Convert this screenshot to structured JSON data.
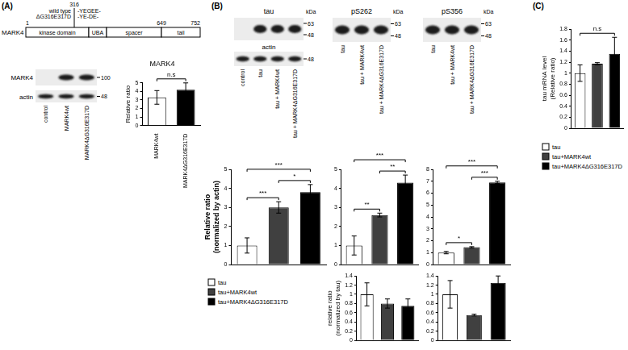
{
  "panels": [
    "(A)",
    "(B)",
    "(C)"
  ],
  "diagram": {
    "protein": "MARK4",
    "domains": [
      "kinase domain",
      "UBA",
      "spacer",
      "tail"
    ],
    "positions": [
      1,
      649,
      752
    ],
    "site": 316,
    "variants": [
      {
        "name": "wild type",
        "sequence": "-YEGEE-"
      },
      {
        "name": "ΔG316E317D",
        "sequence": "-YE-DE-"
      }
    ]
  },
  "blots": [
    {
      "rows": [
        {
          "label": "MARK4",
          "markers": [
            100
          ],
          "bands": [
            false,
            true,
            true
          ]
        },
        {
          "label": "actin",
          "markers": [
            48
          ],
          "bands": [
            true,
            true,
            true
          ]
        }
      ],
      "lanes": [
        "control",
        "MARK4wt",
        "MARK4ΔG316E317D"
      ]
    },
    {
      "title": "tau",
      "units": "kDa",
      "rows": [
        {
          "markers": [
            63,
            48
          ],
          "bands": [
            false,
            true,
            true,
            true
          ]
        },
        {
          "label": "actin",
          "markers": [
            48
          ],
          "bands": [
            true,
            true,
            true,
            true
          ]
        }
      ],
      "lanes": [
        "control",
        "tau",
        "tau + MARK4wt",
        "tau + MARK4ΔG316E317D"
      ]
    },
    {
      "title": "pS262",
      "units": "kDa",
      "rows": [
        {
          "markers": [
            63,
            48
          ],
          "bands": [
            true,
            true,
            true
          ]
        }
      ],
      "lanes": [
        "tau",
        "tau + MARK4wt",
        "tau + MARK4ΔG316E317D"
      ]
    },
    {
      "title": "pS356",
      "units": "kDa",
      "rows": [
        {
          "markers": [
            63,
            48
          ],
          "bands": [
            true,
            true,
            true
          ]
        }
      ],
      "lanes": [
        "tau",
        "tau + MARK4wt",
        "tau + MARK4ΔG316E317D"
      ]
    }
  ],
  "legends": [
    {
      "items": [
        {
          "name": "tau",
          "color": "#ffffff"
        },
        {
          "name": "tau+MARK4wt",
          "color": "#404040"
        },
        {
          "name": "tau+MARK4ΔG316E317D",
          "color": "#000000"
        }
      ]
    },
    {
      "items": [
        {
          "name": "tau",
          "color": "#ffffff"
        },
        {
          "name": "tau+MARK4wt",
          "color": "#404040"
        },
        {
          "name": "tau+MARK4ΔG316E317D",
          "color": "#000000"
        }
      ]
    }
  ],
  "chart_data": [
    {
      "type": "bar",
      "title": "MARK4",
      "ylabel": "Relative ratio",
      "categories": [
        "MARK4wt",
        "MARK4ΔG316E317D"
      ],
      "values": [
        3.3,
        4.2
      ],
      "errors": [
        0.8,
        0.8
      ],
      "colors": [
        "#ffffff",
        "#000000"
      ],
      "ylim": [
        0,
        5
      ],
      "yticks": [
        0,
        1,
        2,
        3,
        4,
        5
      ],
      "grid": false,
      "annotations": [
        {
          "from": 0,
          "to": 1,
          "label": "n.s"
        }
      ]
    },
    {
      "type": "bar",
      "ylabel": "Relative ratio (normalized by actin)",
      "categories": [
        null,
        null,
        null
      ],
      "values": [
        1.0,
        3.0,
        3.8
      ],
      "errors": [
        0.4,
        0.3,
        0.4
      ],
      "colors": [
        "#ffffff",
        "#404040",
        "#000000"
      ],
      "ylim": [
        0,
        5
      ],
      "yticks": [
        0,
        1,
        2,
        3,
        4,
        5
      ],
      "grid": false,
      "tick_labels": "y",
      "annotations": [
        {
          "from": 0,
          "to": 1,
          "label": "***"
        },
        {
          "from": 1,
          "to": 2,
          "label": "*"
        },
        {
          "from": 0,
          "to": 2,
          "label": "***"
        }
      ]
    },
    {
      "type": "bar",
      "categories": [
        null,
        null,
        null
      ],
      "values": [
        1.0,
        2.6,
        4.3
      ],
      "errors": [
        0.5,
        0.1,
        0.4
      ],
      "colors": [
        "#ffffff",
        "#404040",
        "#000000"
      ],
      "ylim": [
        0,
        5
      ],
      "yticks": [
        0,
        1,
        2,
        3,
        4,
        5
      ],
      "grid": false,
      "tick_labels": "y",
      "annotations": [
        {
          "from": 0,
          "to": 1,
          "label": "**"
        },
        {
          "from": 1,
          "to": 2,
          "label": "**"
        },
        {
          "from": 0,
          "to": 2,
          "label": "***"
        }
      ]
    },
    {
      "type": "bar",
      "categories": [
        null,
        null,
        null
      ],
      "values": [
        1.0,
        1.45,
        6.9
      ],
      "errors": [
        0.1,
        0.05,
        0.1
      ],
      "colors": [
        "#ffffff",
        "#404040",
        "#000000"
      ],
      "ylim": [
        0,
        8
      ],
      "yticks": [
        0,
        1,
        2,
        3,
        4,
        5,
        6,
        7,
        8
      ],
      "grid": false,
      "tick_labels": "y",
      "annotations": [
        {
          "from": 0,
          "to": 1,
          "label": "*"
        },
        {
          "from": 1,
          "to": 2,
          "label": "***"
        },
        {
          "from": 0,
          "to": 2,
          "label": "***"
        }
      ]
    },
    {
      "type": "bar",
      "ylabel": "relative ratio (normalized by tau)",
      "categories": [
        null,
        null,
        null
      ],
      "values": [
        1.0,
        0.8,
        0.75
      ],
      "errors": [
        0.25,
        0.1,
        0.15
      ],
      "colors": [
        "#ffffff",
        "#404040",
        "#000000"
      ],
      "ylim": [
        0,
        1.4
      ],
      "yticks": [
        0,
        0.2,
        0.4,
        0.6,
        0.8,
        1,
        1.2,
        1.4
      ],
      "grid": false,
      "tick_labels": "y"
    },
    {
      "type": "bar",
      "categories": [
        null,
        null,
        null
      ],
      "values": [
        1.0,
        0.55,
        1.25
      ],
      "errors": [
        0.3,
        0.02,
        0.15
      ],
      "colors": [
        "#ffffff",
        "#404040",
        "#000000"
      ],
      "ylim": [
        0,
        1.4
      ],
      "yticks": [
        0,
        0.2,
        0.4,
        0.6,
        0.8,
        1,
        1.2,
        1.4
      ],
      "grid": false,
      "tick_labels": "y"
    },
    {
      "type": "bar",
      "ylabel": "tau mRNA level (Relative ratio)",
      "categories": [
        null,
        null,
        null
      ],
      "values": [
        1.0,
        1.17,
        1.35
      ],
      "errors": [
        0.15,
        0.02,
        0.3
      ],
      "colors": [
        "#ffffff",
        "#404040",
        "#000000"
      ],
      "ylim": [
        0,
        1.8
      ],
      "yticks": [
        0,
        0.2,
        0.4,
        0.6,
        0.8,
        1,
        1.2,
        1.4,
        1.6,
        1.8
      ],
      "grid": false,
      "tick_labels": "y",
      "annotations": [
        {
          "from": 0,
          "to": 2,
          "label": "n.s"
        }
      ]
    }
  ]
}
